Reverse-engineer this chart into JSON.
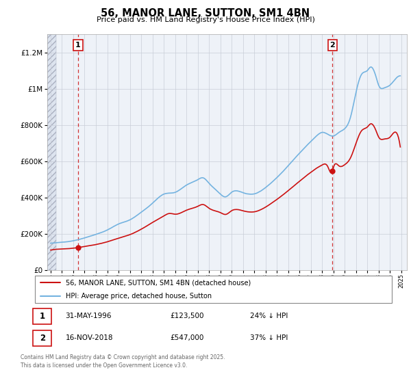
{
  "title": "56, MANOR LANE, SUTTON, SM1 4BN",
  "subtitle": "Price paid vs. HM Land Registry's House Price Index (HPI)",
  "hpi_color": "#74b3e0",
  "price_color": "#cc1111",
  "sale1_year": 1996.42,
  "sale2_year": 2018.92,
  "sale1_price_val": 123500,
  "sale2_price_val": 547000,
  "sale1_label": "31-MAY-1996",
  "sale1_price": "£123,500",
  "sale1_note": "24% ↓ HPI",
  "sale2_label": "16-NOV-2018",
  "sale2_price": "£547,000",
  "sale2_note": "37% ↓ HPI",
  "legend1": "56, MANOR LANE, SUTTON, SM1 4BN (detached house)",
  "legend2": "HPI: Average price, detached house, Sutton",
  "footnote": "Contains HM Land Registry data © Crown copyright and database right 2025.\nThis data is licensed under the Open Government Licence v3.0.",
  "xlim_left": 1993.7,
  "xlim_right": 2025.5,
  "ylim_bottom": 0,
  "ylim_top": 1300000,
  "background_color": "#eef2f8",
  "hatch_region_end": 1994.5,
  "grid_color": "#c8cdd8"
}
